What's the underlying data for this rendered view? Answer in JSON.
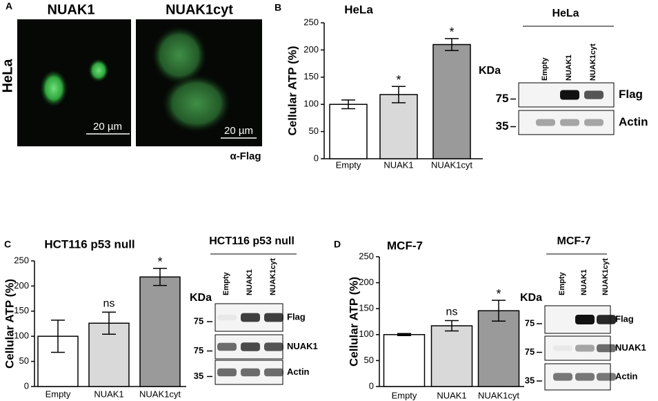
{
  "panel_labels": [
    "A",
    "B",
    "C",
    "D"
  ],
  "microscopy": {
    "columns": [
      "NUAK1",
      "NUAK1cyt"
    ],
    "row": "HeLa",
    "scale_bars": [
      "20 µm",
      "20 µm"
    ],
    "stain": "α-Flag"
  },
  "blots": [
    {
      "title": "HeLa",
      "lanes": [
        "Empty",
        "NUAK1",
        "NUAK1cyt"
      ],
      "unit": "KDa",
      "rows": [
        {
          "label": "Flag",
          "marker": "75"
        },
        {
          "label": "Actin",
          "marker": "35"
        }
      ]
    },
    {
      "title": "HCT116 p53 null",
      "lanes": [
        "Empty",
        "NUAK1",
        "NUAK1cyt"
      ],
      "unit": "KDa",
      "rows": [
        {
          "label": "Flag",
          "marker": "75"
        },
        {
          "label": "NUAK1",
          "marker": "75"
        },
        {
          "label": "Actin",
          "marker": "35"
        }
      ]
    },
    {
      "title": "MCF-7",
      "lanes": [
        "Empty",
        "NUAK1",
        "NUAK1cyt"
      ],
      "unit": "KDa",
      "rows": [
        {
          "label": "Flag",
          "marker": "75"
        },
        {
          "label": "NUAK1",
          "marker": "75"
        },
        {
          "label": "Actin",
          "marker": "35"
        }
      ]
    }
  ],
  "chart_data": [
    {
      "type": "bar",
      "title": "HeLa",
      "y_label": "Cellular ATP (%)",
      "categories": [
        "Empty",
        "NUAK1",
        "NUAK1cyt"
      ],
      "values": [
        100,
        118,
        210
      ],
      "errors": [
        8,
        15,
        11
      ],
      "annotations": [
        null,
        "*",
        "*"
      ],
      "colors": [
        "#ffffff",
        "#d9d9d9",
        "#9a9a9a"
      ],
      "ylim": [
        0,
        250
      ],
      "yticks": [
        0,
        50,
        100,
        150,
        200,
        250
      ]
    },
    {
      "type": "bar",
      "title": "HCT116 p53 null",
      "y_label": "Cellular ATP (%)",
      "categories": [
        "Empty",
        "NUAK1",
        "NUAK1cyt"
      ],
      "values": [
        100,
        126,
        218
      ],
      "errors": [
        32,
        22,
        17
      ],
      "annotations": [
        null,
        "ns",
        "*"
      ],
      "colors": [
        "#ffffff",
        "#d9d9d9",
        "#9a9a9a"
      ],
      "ylim": [
        0,
        250
      ],
      "yticks": [
        0,
        50,
        100,
        150,
        200,
        250
      ]
    },
    {
      "type": "bar",
      "title": "MCF-7",
      "y_label": "Cellular ATP (%)",
      "categories": [
        "Empty",
        "NUAK1",
        "NUAK1cyt"
      ],
      "values": [
        100,
        117,
        146
      ],
      "errors": [
        2,
        10,
        20
      ],
      "annotations": [
        null,
        "ns",
        "*"
      ],
      "colors": [
        "#ffffff",
        "#d9d9d9",
        "#9a9a9a"
      ],
      "ylim": [
        0,
        250
      ],
      "yticks": [
        0,
        50,
        100,
        150,
        200,
        250
      ]
    }
  ]
}
